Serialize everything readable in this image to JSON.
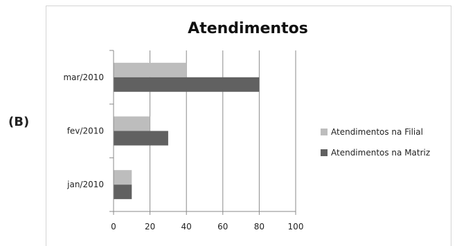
{
  "option_label": "(B)",
  "chart_data": {
    "type": "bar",
    "orientation": "horizontal",
    "title": "Atendimentos",
    "categories": [
      "jan/2010",
      "fev/2010",
      "mar/2010"
    ],
    "series": [
      {
        "name": "Atendimentos na Filial",
        "values": [
          10,
          20,
          40
        ],
        "color": "#bdbdbd"
      },
      {
        "name": "Atendimentos na Matriz",
        "values": [
          10,
          30,
          80
        ],
        "color": "#616161"
      }
    ],
    "xlim": [
      0,
      100
    ],
    "xticks": [
      0,
      20,
      40,
      60,
      80,
      100
    ],
    "grid": true,
    "legend_position": "right"
  }
}
